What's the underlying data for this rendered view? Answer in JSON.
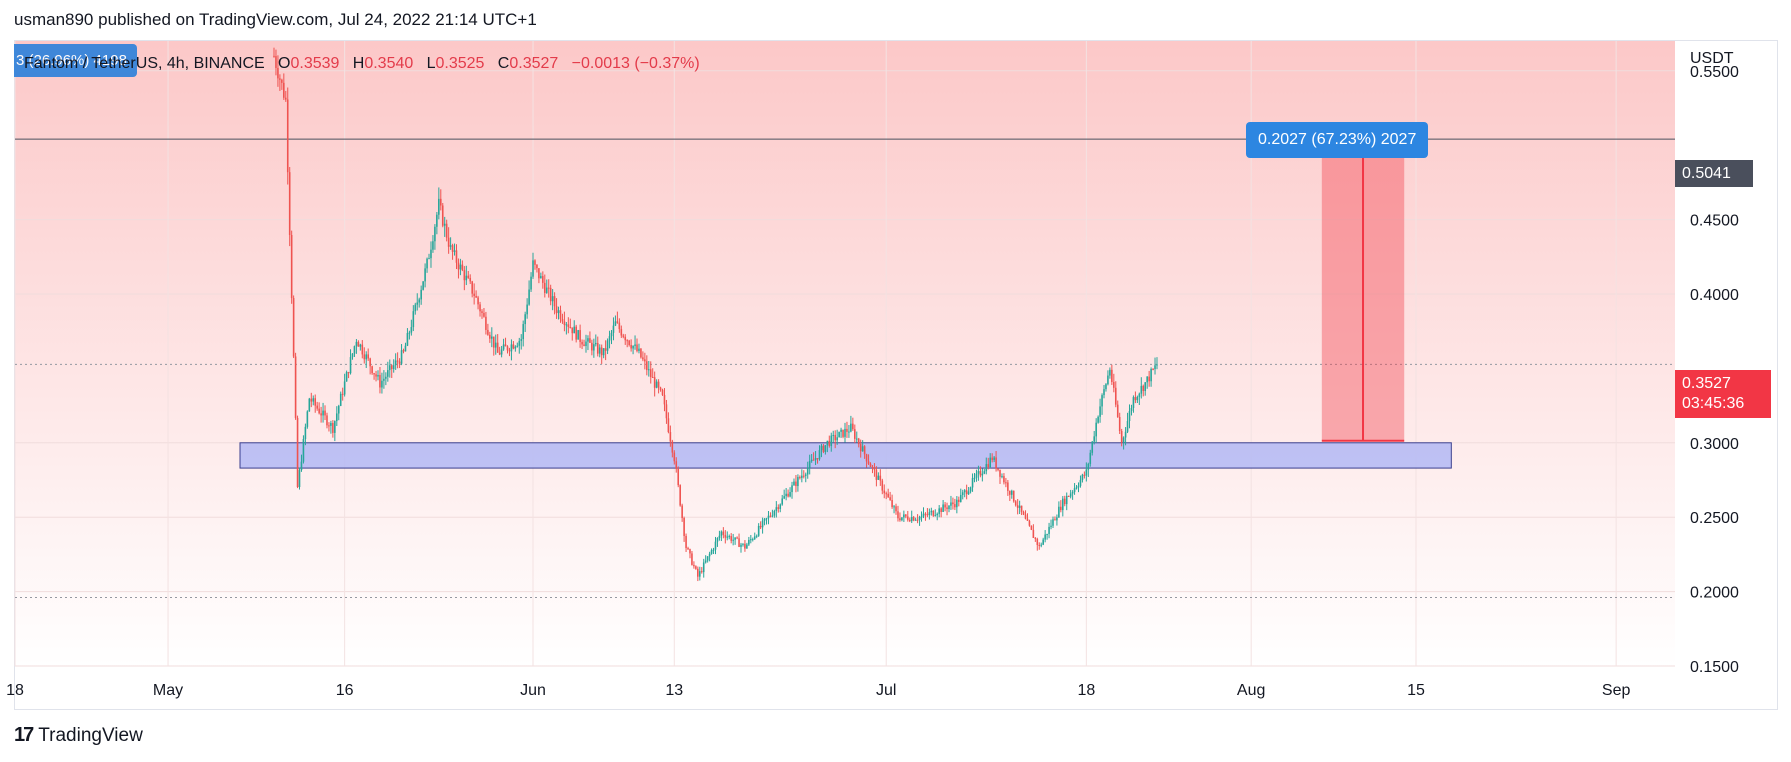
{
  "header": {
    "published": "usman890 published on TradingView.com, Jul 24, 2022 21:14 UTC+1"
  },
  "symbol_bar": {
    "left_badge": "3 (26.96%) 4198",
    "symbol": "Fantom / TetherUS, 4h, BINANCE",
    "o_label": "O",
    "o": "0.3539",
    "h_label": "H",
    "h": "0.3540",
    "l_label": "L",
    "l": "0.3525",
    "c_label": "C",
    "c": "0.3527",
    "change": "−0.0013 (−0.37%)"
  },
  "measure": {
    "label": "0.2027 (67.23%) 2027"
  },
  "price_axis": {
    "unit": "USDT",
    "level_tag": "0.5041",
    "last_price": "0.3527",
    "countdown": "03:45:36"
  },
  "footer": {
    "brand": "TradingView",
    "brand_mark": "17"
  },
  "colors": {
    "up": "#26a69a",
    "down": "#ef5350",
    "zone": "#b3b9f5",
    "measure": "#f23645",
    "accent": "#2d86e1"
  },
  "chart_data": {
    "type": "candlestick",
    "title": "Fantom / TetherUS, 4h, BINANCE",
    "ylabel": "USDT",
    "ylim": [
      0.15,
      0.57
    ],
    "xlim": [
      "2022-04-18",
      "2022-09-06"
    ],
    "y_ticks": [
      "0.5500",
      "0.4500",
      "0.4000",
      "0.3000",
      "0.2500",
      "0.2000",
      "0.1500"
    ],
    "x_ticks": [
      {
        "label": "18",
        "date": "2022-04-18"
      },
      {
        "label": "May",
        "date": "2022-05-01"
      },
      {
        "label": "16",
        "date": "2022-05-16"
      },
      {
        "label": "Jun",
        "date": "2022-06-01"
      },
      {
        "label": "13",
        "date": "2022-06-13"
      },
      {
        "label": "Jul",
        "date": "2022-07-01"
      },
      {
        "label": "18",
        "date": "2022-07-18"
      },
      {
        "label": "Aug",
        "date": "2022-08-01"
      },
      {
        "label": "15",
        "date": "2022-08-15"
      },
      {
        "label": "Sep",
        "date": "2022-09-01"
      }
    ],
    "price_series": [
      [
        "2022-05-10",
        0.56
      ],
      [
        "2022-05-11",
        0.53
      ],
      [
        "2022-05-12",
        0.27
      ],
      [
        "2022-05-13",
        0.33
      ],
      [
        "2022-05-15",
        0.31
      ],
      [
        "2022-05-17",
        0.37
      ],
      [
        "2022-05-19",
        0.34
      ],
      [
        "2022-05-21",
        0.36
      ],
      [
        "2022-05-23",
        0.42
      ],
      [
        "2022-05-24",
        0.46
      ],
      [
        "2022-05-25",
        0.43
      ],
      [
        "2022-05-27",
        0.4
      ],
      [
        "2022-05-29",
        0.36
      ],
      [
        "2022-05-31",
        0.37
      ],
      [
        "2022-06-01",
        0.42
      ],
      [
        "2022-06-03",
        0.39
      ],
      [
        "2022-06-05",
        0.37
      ],
      [
        "2022-06-07",
        0.36
      ],
      [
        "2022-06-08",
        0.38
      ],
      [
        "2022-06-10",
        0.36
      ],
      [
        "2022-06-12",
        0.33
      ],
      [
        "2022-06-13",
        0.29
      ],
      [
        "2022-06-14",
        0.23
      ],
      [
        "2022-06-15",
        0.21
      ],
      [
        "2022-06-17",
        0.24
      ],
      [
        "2022-06-19",
        0.23
      ],
      [
        "2022-06-21",
        0.25
      ],
      [
        "2022-06-24",
        0.28
      ],
      [
        "2022-06-26",
        0.3
      ],
      [
        "2022-06-28",
        0.31
      ],
      [
        "2022-06-30",
        0.28
      ],
      [
        "2022-07-02",
        0.25
      ],
      [
        "2022-07-04",
        0.25
      ],
      [
        "2022-07-07",
        0.26
      ],
      [
        "2022-07-09",
        0.28
      ],
      [
        "2022-07-10",
        0.29
      ],
      [
        "2022-07-12",
        0.26
      ],
      [
        "2022-07-14",
        0.23
      ],
      [
        "2022-07-16",
        0.26
      ],
      [
        "2022-07-18",
        0.28
      ],
      [
        "2022-07-19",
        0.32
      ],
      [
        "2022-07-20",
        0.35
      ],
      [
        "2022-07-21",
        0.3
      ],
      [
        "2022-07-22",
        0.33
      ],
      [
        "2022-07-23",
        0.34
      ],
      [
        "2022-07-24",
        0.3527
      ]
    ],
    "support_zone": {
      "from": "2022-05-10",
      "to": "2022-08-18",
      "low": 0.283,
      "high": 0.3
    },
    "horizontal_lines": [
      {
        "price": 0.5041,
        "style": "solid"
      },
      {
        "price": 0.3527,
        "style": "dotted"
      },
      {
        "price": 0.196,
        "style": "dotted"
      }
    ],
    "measure_box": {
      "from": "2022-08-07",
      "to": "2022-08-14",
      "low": 0.3014,
      "high": 0.5041
    },
    "background": "red gradient fading downward",
    "grid": true
  }
}
